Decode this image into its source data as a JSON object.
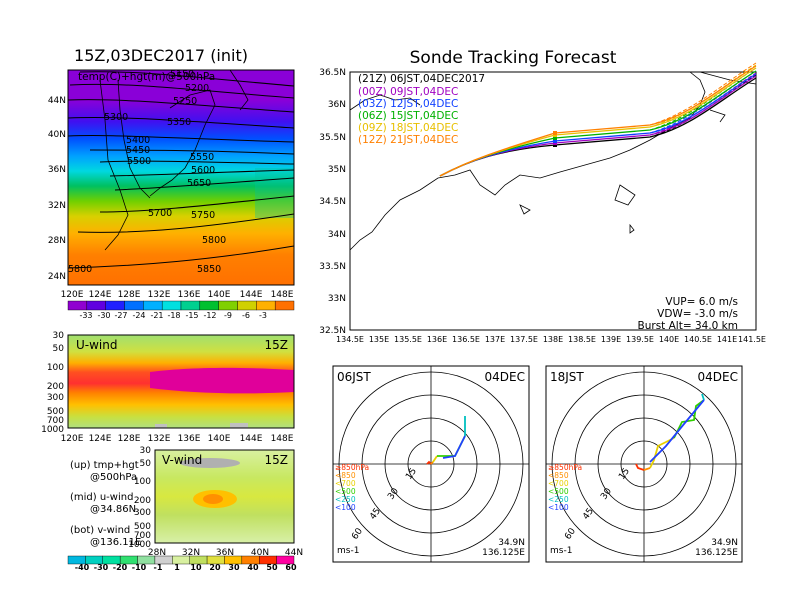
{
  "header": {
    "left_title": "15Z,03DEC2017 (init)",
    "right_title": "Sonde Tracking Forecast"
  },
  "map_panel": {
    "label": "temp(C)+hgt(m)@500hPa",
    "lat_labels": [
      "44N",
      "40N",
      "36N",
      "32N",
      "28N",
      "24N"
    ],
    "lon_labels": [
      "120E",
      "124E",
      "128E",
      "132E",
      "136E",
      "140E",
      "144E",
      "148E"
    ],
    "contour_labels": [
      "5150",
      "5200",
      "5250",
      "5300",
      "5350",
      "5400",
      "5450",
      "5500",
      "5550",
      "5600",
      "5650",
      "5700",
      "5750",
      "5800",
      "5850",
      "5800"
    ]
  },
  "temp_colorbar": {
    "labels": [
      "-33",
      "-30",
      "-27",
      "-24",
      "-21",
      "-18",
      "-15",
      "-12",
      "-9",
      "-6",
      "-3"
    ],
    "colors": [
      "#9000d0",
      "#6000e0",
      "#2020ff",
      "#0070ff",
      "#00b0ff",
      "#00e0e0",
      "#00d090",
      "#00c030",
      "#80d000",
      "#d0d000",
      "#ffb000",
      "#ff7000"
    ]
  },
  "uwind_panel": {
    "label": "U-wind",
    "time": "15Z",
    "y_labels": [
      "30",
      "50",
      "100",
      "200",
      "300",
      "500",
      "700",
      "1000"
    ],
    "x_labels": [
      "120E",
      "124E",
      "128E",
      "132E",
      "136E",
      "140E",
      "144E",
      "148E"
    ]
  },
  "vwind_panel": {
    "label": "V-wind",
    "time": "15Z",
    "y_labels": [
      "30",
      "50",
      "100",
      "200",
      "300",
      "500",
      "700",
      "1000"
    ],
    "x_labels": [
      "28N",
      "32N",
      "36N",
      "40N",
      "44N"
    ]
  },
  "legend_text": {
    "line1a": "(up) tmp+hgt",
    "line1b": "@500hPa",
    "line2a": "(mid) u-wind",
    "line2b": "@34.86N",
    "line3a": "(bot) v-wind",
    "line3b": "@136.11E"
  },
  "wind_colorbar": {
    "labels": [
      "-40",
      "-30",
      "-20",
      "-10",
      "-1",
      "1",
      "10",
      "20",
      "30",
      "40",
      "50",
      "60"
    ],
    "colors": [
      "#00b8e0",
      "#00d0c0",
      "#00e0a0",
      "#30e070",
      "#90e0a0",
      "#d0d0d0",
      "#d8f0a0",
      "#c0e060",
      "#e0e040",
      "#ffc000",
      "#ff8000",
      "#ff3000",
      "#ff00a0"
    ]
  },
  "track_map": {
    "lat_labels": [
      "36.5N",
      "36N",
      "35.5N",
      "35N",
      "34.5N",
      "34N",
      "33.5N",
      "33N",
      "32.5N"
    ],
    "lon_labels": [
      "134.5E",
      "135E",
      "135.5E",
      "136E",
      "136.5E",
      "137E",
      "137.5E",
      "138E",
      "138.5E",
      "139E",
      "139.5E",
      "140E",
      "140.5E",
      "141E",
      "141.5E"
    ],
    "legend": [
      {
        "text": "(21Z) 06JST,04DEC2017",
        "color": "#000000"
      },
      {
        "text": "(00Z) 09JST,04DEC",
        "color": "#a000c0"
      },
      {
        "text": "(03Z) 12JST,04DEC",
        "color": "#1040ff"
      },
      {
        "text": "(06Z) 15JST,04DEC",
        "color": "#00b000"
      },
      {
        "text": "(09Z) 18JST,04DEC",
        "color": "#e8c000"
      },
      {
        "text": "(12Z) 21JST,04DEC",
        "color": "#ff8000"
      }
    ],
    "params": {
      "vup": "VUP=  6.0 m/s",
      "vdw": "VDW= -3.0 m/s",
      "burst": "Burst Alt= 34.0 km"
    }
  },
  "hodo_left": {
    "time": "06JST",
    "date": "04DEC",
    "rings": [
      "15",
      "30",
      "45",
      "60"
    ],
    "units": "ms-1",
    "lat": "34.9N",
    "lon": "136.125E",
    "levels": [
      {
        "text": "≥850hPa",
        "color": "#ff3000"
      },
      {
        "text": "<850",
        "color": "#ff9000"
      },
      {
        "text": "<700",
        "color": "#e8d000"
      },
      {
        "text": "<500",
        "color": "#30d000"
      },
      {
        "text": "<250",
        "color": "#00c0c0"
      },
      {
        "text": "<100",
        "color": "#2040ff"
      }
    ]
  },
  "hodo_right": {
    "time": "18JST",
    "date": "04DEC",
    "rings": [
      "15",
      "30",
      "45",
      "60"
    ],
    "units": "ms-1",
    "lat": "34.9N",
    "lon": "136.125E",
    "levels": [
      {
        "text": "≥850hPa",
        "color": "#ff3000"
      },
      {
        "text": "<850",
        "color": "#ff9000"
      },
      {
        "text": "<700",
        "color": "#e8d000"
      },
      {
        "text": "<500",
        "color": "#30d000"
      },
      {
        "text": "<250",
        "color": "#00c0c0"
      },
      {
        "text": "<100",
        "color": "#2040ff"
      }
    ]
  }
}
